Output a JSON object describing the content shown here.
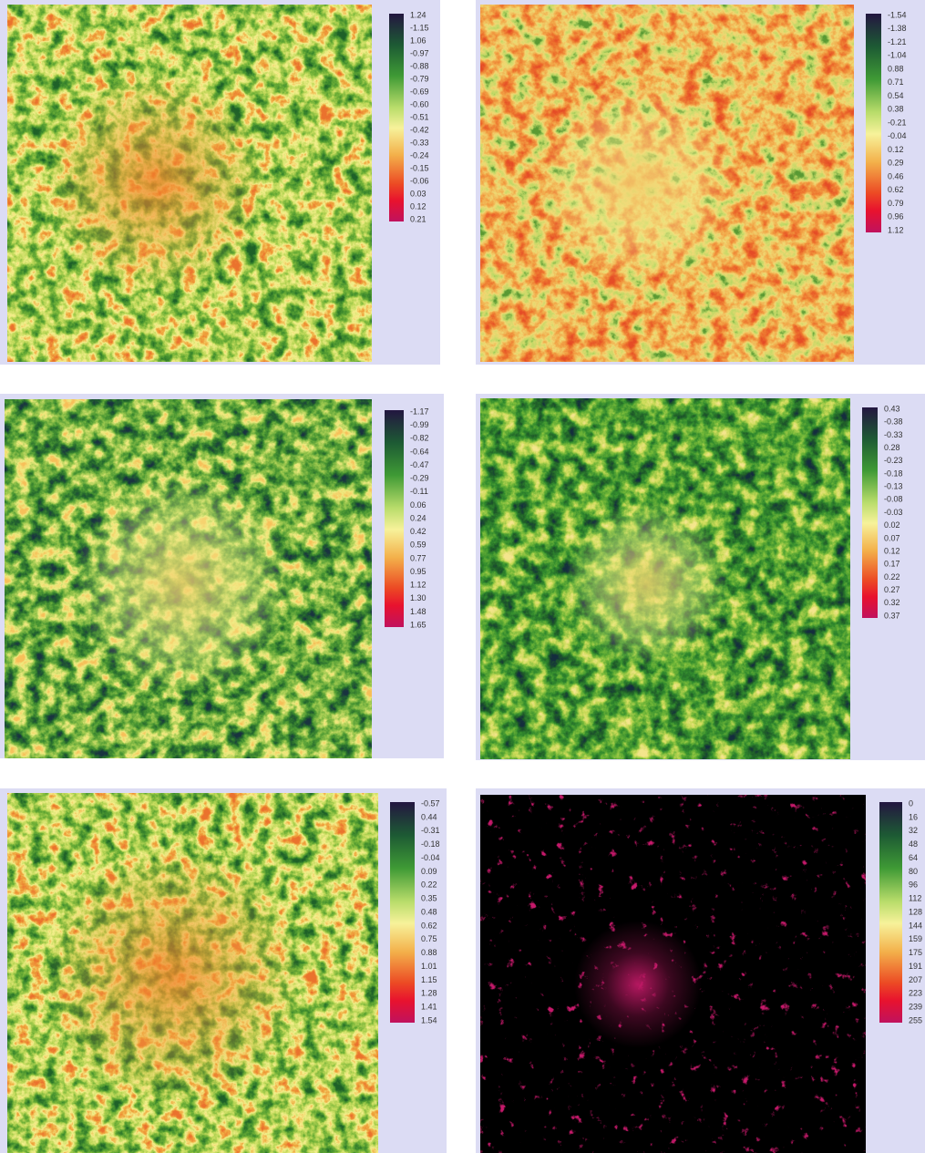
{
  "panels": [
    {
      "legend_labels": [
        "1.24",
        "-1.15",
        "1.06",
        "-0.97",
        "-0.88",
        "-0.79",
        "-0.69",
        "-0.60",
        "-0.51",
        "-0.42",
        "-0.33",
        "-0.24",
        "-0.15",
        "-0.06",
        "0.03",
        "0.12",
        "0.21"
      ]
    },
    {
      "legend_labels": [
        "-1.54",
        "-1.38",
        "-1.21",
        "-1.04",
        "0.88",
        "0.71",
        "0.54",
        "0.38",
        "-0.21",
        "-0.04",
        "0.12",
        "0.29",
        "0.46",
        "0.62",
        "0.79",
        "0.96",
        "1.12"
      ]
    },
    {
      "legend_labels": [
        "-1.17",
        "-0.99",
        "-0.82",
        "-0.64",
        "-0.47",
        "-0.29",
        "-0.11",
        "0.06",
        "0.24",
        "0.42",
        "0.59",
        "0.77",
        "0.95",
        "1.12",
        "1.30",
        "1.48",
        "1.65"
      ]
    },
    {
      "legend_labels": [
        "0.43",
        "-0.38",
        "-0.33",
        "0.28",
        "-0.23",
        "-0.18",
        "-0.13",
        "-0.08",
        "-0.03",
        "0.02",
        "0.07",
        "0.12",
        "0.17",
        "0.22",
        "0.27",
        "0.32",
        "0.37"
      ]
    },
    {
      "legend_labels": [
        "-0.57",
        "0.44",
        "-0.31",
        "-0.18",
        "-0.04",
        "0.09",
        "0.22",
        "0.35",
        "0.48",
        "0.62",
        "0.75",
        "0.88",
        "1.01",
        "1.15",
        "1.28",
        "1.41",
        "1.54"
      ]
    },
    {
      "legend_labels": [
        "0",
        "16",
        "32",
        "48",
        "64",
        "80",
        "96",
        "112",
        "128",
        "144",
        "159",
        "175",
        "191",
        "207",
        "223",
        "239",
        "255"
      ]
    }
  ]
}
